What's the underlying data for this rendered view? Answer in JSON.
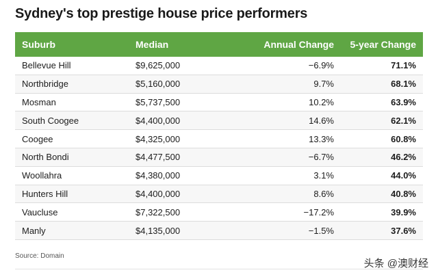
{
  "title": "Sydney's top prestige house price performers",
  "table": {
    "headers": [
      "Suburb",
      "Median",
      "Annual Change",
      "5-year Change"
    ],
    "rows": [
      [
        "Bellevue Hill",
        "$9,625,000",
        "−6.9%",
        "71.1%"
      ],
      [
        "Northbridge",
        "$5,160,000",
        "9.7%",
        "68.1%"
      ],
      [
        "Mosman",
        "$5,737,500",
        "10.2%",
        "63.9%"
      ],
      [
        "South Coogee",
        "$4,400,000",
        "14.6%",
        "62.1%"
      ],
      [
        "Coogee",
        "$4,325,000",
        "13.3%",
        "60.8%"
      ],
      [
        "North Bondi",
        "$4,477,500",
        "−6.7%",
        "46.2%"
      ],
      [
        "Woollahra",
        "$4,380,000",
        "3.1%",
        "44.0%"
      ],
      [
        "Hunters Hill",
        "$4,400,000",
        "8.6%",
        "40.8%"
      ],
      [
        "Vaucluse",
        "$7,322,500",
        "−17.2%",
        "39.9%"
      ],
      [
        "Manly",
        "$4,135,000",
        "−1.5%",
        "37.6%"
      ]
    ]
  },
  "source": "Source: Domain",
  "watermark": "头条 @澳财经",
  "colors": {
    "header_bg": "#5fa644"
  }
}
